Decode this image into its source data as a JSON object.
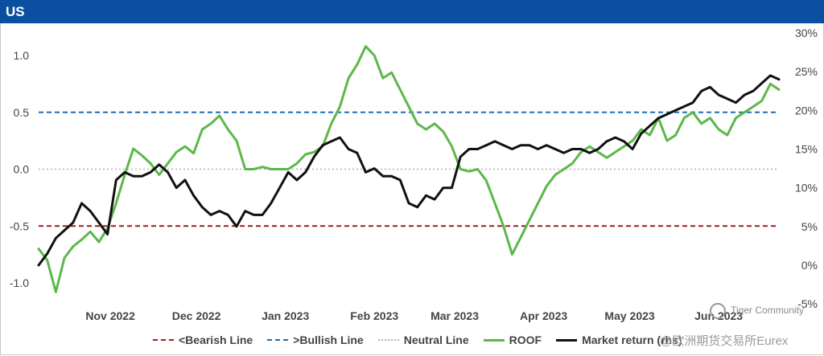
{
  "header": {
    "title": "US"
  },
  "chart_data": {
    "type": "line",
    "title": "US",
    "left_axis": {
      "ticks": [
        1.0,
        0.5,
        0.0,
        -0.5,
        -1.0
      ],
      "tick_labels": [
        "1.0",
        "0.5",
        "0.0",
        "-0.5",
        "-1.0"
      ],
      "range": [
        -1.1,
        1.1
      ]
    },
    "right_axis": {
      "ticks": [
        30,
        25,
        20,
        15,
        10,
        5,
        0,
        -5
      ],
      "tick_labels": [
        "30%",
        "25%",
        "20%",
        "15%",
        "10%",
        "5%",
        "0%",
        "-5%"
      ],
      "range": [
        -5,
        30
      ]
    },
    "x_labels": [
      "Nov 2022",
      "Dec 2022",
      "Jan 2023",
      "Feb 2023",
      "Mar 2023",
      "Apr 2023",
      "May 2023",
      "Jun 2023"
    ],
    "x_range": [
      "2022-10-14",
      "2023-06-29"
    ],
    "x_label_dates": [
      "2022-11-08",
      "2022-12-08",
      "2023-01-08",
      "2023-02-08",
      "2023-03-08",
      "2023-04-08",
      "2023-05-08",
      "2023-06-08"
    ],
    "legend_position": "bottom",
    "reference_lines": [
      {
        "name": "<Bearish Line",
        "value": -0.5,
        "color": "#a31c1c",
        "style": "dashed"
      },
      {
        "name": ">Bullish Line",
        "value": 0.5,
        "color": "#1f6fb5",
        "style": "dashed"
      },
      {
        "name": "Neutral Line",
        "value": 0.0,
        "color": "#b3b3b3",
        "style": "dotted"
      }
    ],
    "series": [
      {
        "name": "ROOF",
        "axis": "left",
        "color": "#5cb84a",
        "x": [
          "2022-10-14",
          "2022-10-17",
          "2022-10-20",
          "2022-10-23",
          "2022-10-26",
          "2022-10-29",
          "2022-11-01",
          "2022-11-04",
          "2022-11-07",
          "2022-11-10",
          "2022-11-13",
          "2022-11-16",
          "2022-11-19",
          "2022-11-22",
          "2022-11-25",
          "2022-11-28",
          "2022-12-01",
          "2022-12-04",
          "2022-12-07",
          "2022-12-10",
          "2022-12-13",
          "2022-12-16",
          "2022-12-19",
          "2022-12-22",
          "2022-12-25",
          "2022-12-28",
          "2022-12-31",
          "2023-01-03",
          "2023-01-06",
          "2023-01-09",
          "2023-01-12",
          "2023-01-15",
          "2023-01-18",
          "2023-01-21",
          "2023-01-24",
          "2023-01-27",
          "2023-01-30",
          "2023-02-02",
          "2023-02-05",
          "2023-02-08",
          "2023-02-11",
          "2023-02-14",
          "2023-02-17",
          "2023-02-20",
          "2023-02-23",
          "2023-02-26",
          "2023-03-01",
          "2023-03-04",
          "2023-03-07",
          "2023-03-10",
          "2023-03-13",
          "2023-03-16",
          "2023-03-19",
          "2023-03-22",
          "2023-03-25",
          "2023-03-28",
          "2023-03-31",
          "2023-04-03",
          "2023-04-06",
          "2023-04-09",
          "2023-04-12",
          "2023-04-15",
          "2023-04-18",
          "2023-04-21",
          "2023-04-24",
          "2023-04-27",
          "2023-04-30",
          "2023-05-03",
          "2023-05-06",
          "2023-05-09",
          "2023-05-12",
          "2023-05-15",
          "2023-05-18",
          "2023-05-21",
          "2023-05-24",
          "2023-05-27",
          "2023-05-30",
          "2023-06-02",
          "2023-06-05",
          "2023-06-08",
          "2023-06-11",
          "2023-06-14",
          "2023-06-17",
          "2023-06-20",
          "2023-06-23",
          "2023-06-26",
          "2023-06-29"
        ],
        "values": [
          -0.7,
          -0.8,
          -1.08,
          -0.78,
          -0.68,
          -0.62,
          -0.55,
          -0.64,
          -0.52,
          -0.3,
          -0.05,
          0.18,
          0.12,
          0.05,
          -0.05,
          0.05,
          0.15,
          0.2,
          0.14,
          0.35,
          0.4,
          0.47,
          0.35,
          0.25,
          0.0,
          0.0,
          0.02,
          0.0,
          0.0,
          0.0,
          0.05,
          0.13,
          0.15,
          0.2,
          0.4,
          0.55,
          0.8,
          0.92,
          1.08,
          1.0,
          0.8,
          0.85,
          0.7,
          0.55,
          0.4,
          0.35,
          0.4,
          0.33,
          0.2,
          0.0,
          -0.02,
          0.0,
          -0.1,
          -0.3,
          -0.5,
          -0.75,
          -0.6,
          -0.45,
          -0.3,
          -0.15,
          -0.05,
          0.0,
          0.05,
          0.15,
          0.2,
          0.15,
          0.1,
          0.15,
          0.2,
          0.25,
          0.35,
          0.3,
          0.45,
          0.25,
          0.3,
          0.45,
          0.5,
          0.4,
          0.45,
          0.35,
          0.3,
          0.45,
          0.5,
          0.55,
          0.6,
          0.75,
          0.7
        ]
      },
      {
        "name": "Market return (rhs)",
        "axis": "right",
        "color": "#111111",
        "x": [
          "2022-10-14",
          "2022-10-17",
          "2022-10-20",
          "2022-10-23",
          "2022-10-26",
          "2022-10-29",
          "2022-11-01",
          "2022-11-04",
          "2022-11-07",
          "2022-11-10",
          "2022-11-13",
          "2022-11-16",
          "2022-11-19",
          "2022-11-22",
          "2022-11-25",
          "2022-11-28",
          "2022-12-01",
          "2022-12-04",
          "2022-12-07",
          "2022-12-10",
          "2022-12-13",
          "2022-12-16",
          "2022-12-19",
          "2022-12-22",
          "2022-12-25",
          "2022-12-28",
          "2022-12-31",
          "2023-01-03",
          "2023-01-06",
          "2023-01-09",
          "2023-01-12",
          "2023-01-15",
          "2023-01-18",
          "2023-01-21",
          "2023-01-24",
          "2023-01-27",
          "2023-01-30",
          "2023-02-02",
          "2023-02-05",
          "2023-02-08",
          "2023-02-11",
          "2023-02-14",
          "2023-02-17",
          "2023-02-20",
          "2023-02-23",
          "2023-02-26",
          "2023-03-01",
          "2023-03-04",
          "2023-03-07",
          "2023-03-10",
          "2023-03-13",
          "2023-03-16",
          "2023-03-19",
          "2023-03-22",
          "2023-03-25",
          "2023-03-28",
          "2023-03-31",
          "2023-04-03",
          "2023-04-06",
          "2023-04-09",
          "2023-04-12",
          "2023-04-15",
          "2023-04-18",
          "2023-04-21",
          "2023-04-24",
          "2023-04-27",
          "2023-04-30",
          "2023-05-03",
          "2023-05-06",
          "2023-05-09",
          "2023-05-12",
          "2023-05-15",
          "2023-05-18",
          "2023-05-21",
          "2023-05-24",
          "2023-05-27",
          "2023-05-30",
          "2023-06-02",
          "2023-06-05",
          "2023-06-08",
          "2023-06-11",
          "2023-06-14",
          "2023-06-17",
          "2023-06-20",
          "2023-06-23",
          "2023-06-26",
          "2023-06-29"
        ],
        "values": [
          0.0,
          1.5,
          3.5,
          4.5,
          5.5,
          8.0,
          7.0,
          5.5,
          4.0,
          11.0,
          12.0,
          11.5,
          11.5,
          12.0,
          13.0,
          12.0,
          10.0,
          11.0,
          9.0,
          7.5,
          6.5,
          7.0,
          6.5,
          5.0,
          7.0,
          6.5,
          6.5,
          8.0,
          10.0,
          12.0,
          11.0,
          12.0,
          14.0,
          15.5,
          16.0,
          16.5,
          15.0,
          14.5,
          12.0,
          12.5,
          11.5,
          11.5,
          11.0,
          8.0,
          7.5,
          9.0,
          8.5,
          10.0,
          10.0,
          14.0,
          15.0,
          15.0,
          15.5,
          16.0,
          15.5,
          15.0,
          15.5,
          15.5,
          15.0,
          15.5,
          15.0,
          14.5,
          15.0,
          15.0,
          14.5,
          15.0,
          16.0,
          16.5,
          16.0,
          15.0,
          17.0,
          18.0,
          19.0,
          19.5,
          20.0,
          20.5,
          21.0,
          22.5,
          23.0,
          22.0,
          21.5,
          21.0,
          22.0,
          22.5,
          23.5,
          24.5,
          24.0
        ]
      }
    ]
  },
  "watermarks": {
    "community": "Tiger Community",
    "source": "@欧洲期货交易所Eurex"
  }
}
